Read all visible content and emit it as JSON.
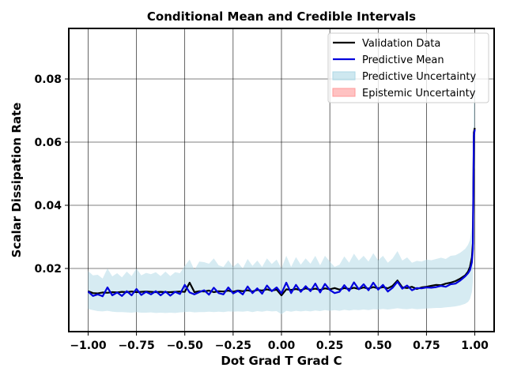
{
  "chart_data": {
    "type": "line",
    "title": "Conditional Mean and Credible Intervals",
    "xlabel": "Dot Grad T Grad C",
    "ylabel": "Scalar Dissipation Rate",
    "xlim": [
      -1.1,
      1.1
    ],
    "ylim": [
      0.0,
      0.096
    ],
    "xticks": [
      -1.0,
      -0.75,
      -0.5,
      -0.25,
      0.0,
      0.25,
      0.5,
      0.75,
      1.0
    ],
    "xtick_labels": [
      "−1.00",
      "−0.75",
      "−0.50",
      "−0.25",
      "0.00",
      "0.25",
      "0.50",
      "0.75",
      "1.00"
    ],
    "yticks": [
      0.02,
      0.04,
      0.06,
      0.08
    ],
    "ytick_labels": [
      "0.02",
      "0.04",
      "0.06",
      "0.08"
    ],
    "grid": true,
    "legend_position": "top-right",
    "legend": [
      {
        "label": "Validation Data",
        "kind": "line",
        "color": "#000000"
      },
      {
        "label": "Predictive Mean",
        "kind": "line",
        "color": "#0000dd"
      },
      {
        "label": "Predictive Uncertainty",
        "kind": "patch",
        "color": "#add8e6"
      },
      {
        "label": "Epistemic Uncertainty",
        "kind": "patch",
        "color": "#ff9999"
      }
    ],
    "x": [
      -1.0,
      -0.975,
      -0.95,
      -0.925,
      -0.9,
      -0.875,
      -0.85,
      -0.825,
      -0.8,
      -0.775,
      -0.75,
      -0.725,
      -0.7,
      -0.675,
      -0.65,
      -0.625,
      -0.6,
      -0.575,
      -0.55,
      -0.525,
      -0.5,
      -0.475,
      -0.45,
      -0.425,
      -0.4,
      -0.375,
      -0.35,
      -0.325,
      -0.3,
      -0.275,
      -0.25,
      -0.225,
      -0.2,
      -0.175,
      -0.15,
      -0.125,
      -0.1,
      -0.075,
      -0.05,
      -0.025,
      0.0,
      0.025,
      0.05,
      0.075,
      0.1,
      0.125,
      0.15,
      0.175,
      0.2,
      0.225,
      0.25,
      0.275,
      0.3,
      0.325,
      0.35,
      0.375,
      0.4,
      0.425,
      0.45,
      0.475,
      0.5,
      0.525,
      0.55,
      0.575,
      0.6,
      0.625,
      0.65,
      0.675,
      0.7,
      0.725,
      0.75,
      0.775,
      0.8,
      0.825,
      0.85,
      0.875,
      0.9,
      0.925,
      0.95,
      0.965,
      0.975,
      0.985,
      0.99,
      0.995,
      1.0
    ],
    "series": [
      {
        "name": "Validation Data",
        "color": "#000000",
        "values": [
          0.0128,
          0.0122,
          0.0121,
          0.0124,
          0.0123,
          0.0125,
          0.0124,
          0.0126,
          0.0125,
          0.0127,
          0.0125,
          0.0126,
          0.0127,
          0.0126,
          0.0125,
          0.0126,
          0.0125,
          0.0125,
          0.0126,
          0.0127,
          0.0126,
          0.0155,
          0.0125,
          0.0128,
          0.0127,
          0.013,
          0.0125,
          0.0128,
          0.0127,
          0.013,
          0.0126,
          0.013,
          0.0128,
          0.0131,
          0.0127,
          0.0132,
          0.013,
          0.0134,
          0.013,
          0.0133,
          0.0115,
          0.0134,
          0.0132,
          0.0135,
          0.0131,
          0.0137,
          0.0133,
          0.0136,
          0.0132,
          0.0137,
          0.0134,
          0.0138,
          0.0133,
          0.0138,
          0.0135,
          0.0139,
          0.0135,
          0.014,
          0.0136,
          0.0141,
          0.0137,
          0.0141,
          0.0137,
          0.0145,
          0.0162,
          0.014,
          0.0138,
          0.0142,
          0.0135,
          0.014,
          0.0142,
          0.0145,
          0.0148,
          0.0147,
          0.0152,
          0.0155,
          0.016,
          0.0168,
          0.0178,
          0.019,
          0.0205,
          0.0235,
          0.028,
          0.063,
          0.0645
        ]
      },
      {
        "name": "Predictive Mean",
        "color": "#0000dd",
        "values": [
          0.0127,
          0.0113,
          0.0118,
          0.0112,
          0.014,
          0.0115,
          0.0124,
          0.0113,
          0.0128,
          0.0115,
          0.0135,
          0.0116,
          0.0126,
          0.0118,
          0.0128,
          0.0115,
          0.0127,
          0.0114,
          0.0126,
          0.0119,
          0.0148,
          0.0124,
          0.0118,
          0.0125,
          0.0131,
          0.0117,
          0.0139,
          0.0122,
          0.0118,
          0.014,
          0.0121,
          0.0129,
          0.0118,
          0.0143,
          0.0122,
          0.0137,
          0.012,
          0.0146,
          0.0128,
          0.014,
          0.0121,
          0.0155,
          0.0122,
          0.0148,
          0.0126,
          0.0144,
          0.0128,
          0.0152,
          0.0124,
          0.0151,
          0.0132,
          0.0122,
          0.0126,
          0.0147,
          0.0129,
          0.0156,
          0.0134,
          0.015,
          0.0131,
          0.0155,
          0.0133,
          0.0148,
          0.0127,
          0.0139,
          0.0158,
          0.0136,
          0.0146,
          0.0131,
          0.0138,
          0.0137,
          0.014,
          0.0139,
          0.0141,
          0.0145,
          0.0142,
          0.015,
          0.0152,
          0.0162,
          0.0175,
          0.0185,
          0.0195,
          0.022,
          0.0262,
          0.062,
          0.064
        ]
      }
    ],
    "bands": [
      {
        "name": "Predictive Uncertainty",
        "color": "#add8e6",
        "opacity": 0.5,
        "lower": [
          0.0072,
          0.0068,
          0.0065,
          0.0064,
          0.0066,
          0.0063,
          0.0062,
          0.0062,
          0.0061,
          0.006,
          0.0062,
          0.006,
          0.006,
          0.0061,
          0.0059,
          0.006,
          0.0059,
          0.006,
          0.0059,
          0.0061,
          0.0062,
          0.0063,
          0.0061,
          0.0062,
          0.0062,
          0.0063,
          0.0062,
          0.0063,
          0.0062,
          0.0064,
          0.0063,
          0.0064,
          0.0063,
          0.0065,
          0.0062,
          0.0065,
          0.0063,
          0.0066,
          0.0064,
          0.0065,
          0.0055,
          0.0066,
          0.0063,
          0.0066,
          0.0064,
          0.0066,
          0.0064,
          0.0067,
          0.0065,
          0.0068,
          0.0066,
          0.0068,
          0.0066,
          0.0069,
          0.0067,
          0.0069,
          0.0068,
          0.007,
          0.0068,
          0.0071,
          0.007,
          0.0072,
          0.007,
          0.0072,
          0.0074,
          0.0072,
          0.0071,
          0.0073,
          0.0071,
          0.0072,
          0.0073,
          0.0074,
          0.0075,
          0.0075,
          0.0077,
          0.0078,
          0.008,
          0.0083,
          0.0088,
          0.0094,
          0.0103,
          0.0125,
          0.016,
          0.05,
          0.052
        ],
        "upper": [
          0.0192,
          0.0178,
          0.018,
          0.0168,
          0.02,
          0.0175,
          0.0185,
          0.0172,
          0.019,
          0.0176,
          0.02,
          0.0178,
          0.0186,
          0.0182,
          0.0188,
          0.0176,
          0.019,
          0.0176,
          0.0188,
          0.0185,
          0.0208,
          0.0228,
          0.0195,
          0.0222,
          0.022,
          0.0215,
          0.0232,
          0.021,
          0.0205,
          0.0226,
          0.0205,
          0.0218,
          0.02,
          0.023,
          0.0208,
          0.0225,
          0.0205,
          0.0232,
          0.0214,
          0.0228,
          0.02,
          0.024,
          0.0205,
          0.0236,
          0.0212,
          0.0232,
          0.0215,
          0.024,
          0.021,
          0.024,
          0.0222,
          0.0205,
          0.0212,
          0.0238,
          0.0218,
          0.0247,
          0.0225,
          0.024,
          0.0222,
          0.0248,
          0.0226,
          0.024,
          0.0218,
          0.0232,
          0.0255,
          0.0225,
          0.0235,
          0.0218,
          0.0224,
          0.0222,
          0.0228,
          0.0226,
          0.023,
          0.0234,
          0.023,
          0.024,
          0.0242,
          0.025,
          0.0262,
          0.0275,
          0.029,
          0.033,
          0.042,
          0.08,
          0.082
        ]
      }
    ]
  }
}
